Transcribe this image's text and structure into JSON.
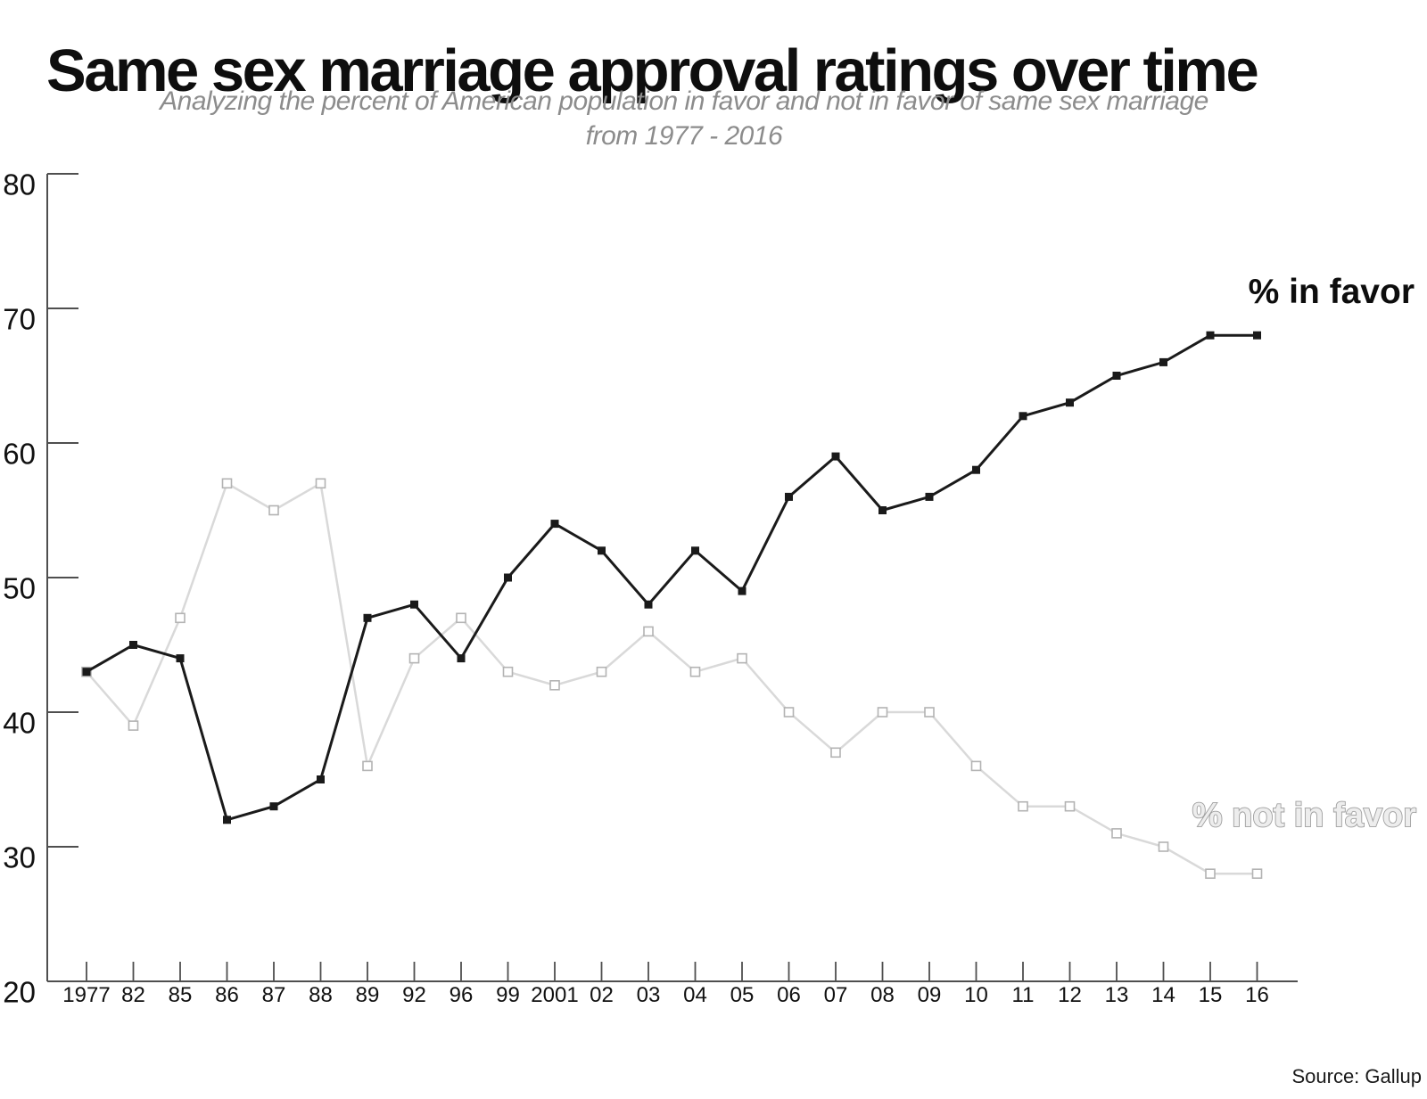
{
  "title": "Same sex marriage approval ratings over time",
  "subtitle_line1": "Analyzing the percent of American population in favor and not in favor of same sex marriage",
  "subtitle_line2": "from 1977 - 2016",
  "source": "Source: Gallup",
  "legend": {
    "favor_label": "% in favor",
    "not_favor_label": "% not in favor"
  },
  "chart_data": {
    "type": "line",
    "title": "Same sex marriage approval ratings over time",
    "categories": [
      "1977",
      "82",
      "85",
      "86",
      "87",
      "88",
      "89",
      "92",
      "96",
      "99",
      "2001",
      "02",
      "03",
      "04",
      "05",
      "06",
      "07",
      "08",
      "09",
      "10",
      "11",
      "12",
      "13",
      "14",
      "15",
      "16"
    ],
    "series": [
      {
        "name": "% in favor",
        "color": "#1a1a1a",
        "marker": "filled-square",
        "values": [
          43,
          45,
          44,
          32,
          33,
          35,
          47,
          48,
          44,
          50,
          54,
          52,
          48,
          52,
          49,
          56,
          59,
          55,
          56,
          58,
          62,
          63,
          65,
          66,
          68,
          68
        ]
      },
      {
        "name": "% not in favor",
        "color": "#d9d9d9",
        "marker": "open-square",
        "marker_border": "#b3b3b3",
        "values": [
          43,
          39,
          47,
          57,
          55,
          57,
          36,
          44,
          47,
          43,
          42,
          43,
          46,
          43,
          44,
          40,
          37,
          40,
          40,
          36,
          33,
          33,
          31,
          30,
          28,
          28
        ]
      }
    ],
    "xlabel": "",
    "ylabel": "",
    "ylim": [
      20,
      80
    ],
    "yticks": [
      20,
      30,
      40,
      50,
      60,
      70,
      80
    ],
    "grid": false,
    "axis_color": "#4f4f4f",
    "legend_position": "end-of-line-right"
  }
}
